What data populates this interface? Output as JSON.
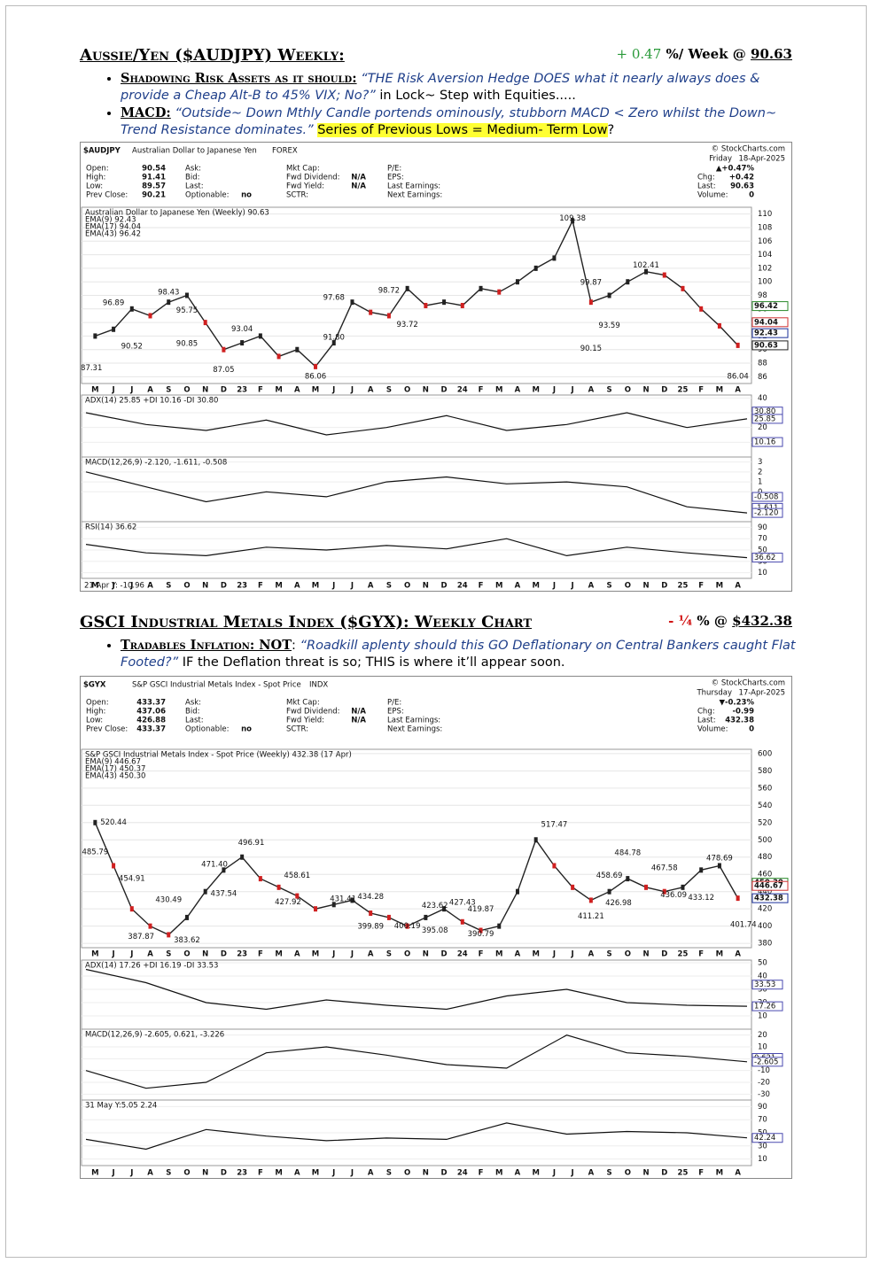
{
  "section1": {
    "title": "Aussie/Yen ($AUDJPY) Weekly:",
    "change": "+ 0.47",
    "change_suffix": "%/ Week @",
    "price": "90.63",
    "bullets": [
      {
        "lead": "Shadowing Risk Assets as it should:",
        "quote": "“THE Risk Aversion Hedge DOES what it nearly always does & provide a Cheap Alt-B to 45% VIX; No?”",
        "text": "in Lock~ Step with Equities....."
      },
      {
        "lead": "MACD:",
        "quote": "“Outside~ Down Mthly Candle portends ominously, stubborn MACD < Zero whilst the Down~ Trend Resistance dominates.”",
        "highlight": "Series of Previous Lows = Medium- Term Low",
        "text": "?"
      }
    ],
    "chart": {
      "type": "line",
      "symbol": "$AUDJPY",
      "name": "Australian Dollar to Japanese Yen",
      "exchange": "FOREX",
      "watermark": "© StockCharts.com",
      "day": "Friday",
      "date": "18-Apr-2025",
      "change": "▲+0.47%",
      "quote": [
        [
          [
            "Open:",
            "90.54"
          ],
          [
            "High:",
            "91.41"
          ],
          [
            "Low:",
            "89.57"
          ],
          [
            "Prev Close:",
            "90.21"
          ]
        ],
        [
          [
            "Ask:"
          ],
          [
            "Bid:"
          ],
          [
            "Last:"
          ],
          [
            "Optionable:",
            "no"
          ]
        ],
        [
          [
            "Mkt Cap:"
          ],
          [
            "Fwd Dividend:",
            "N/A"
          ],
          [
            "Fwd Yield:",
            "N/A"
          ],
          [
            "SCTR:"
          ]
        ],
        [
          [
            "P/E:"
          ],
          [
            "EPS:"
          ],
          [
            "Last Earnings:"
          ],
          [
            "Next Earnings:"
          ]
        ]
      ],
      "quote_right": [
        [
          "Chg:",
          "+0.42"
        ],
        [
          "Last:",
          "90.63"
        ],
        [
          "Volume:",
          "0"
        ]
      ],
      "legend": [
        "Australian Dollar to Japanese Yen (Weekly) 90.63",
        "EMA(9) 92.43",
        "EMA(17) 94.04",
        "EMA(43) 96.42"
      ],
      "categories": [
        "M",
        "J",
        "J",
        "A",
        "S",
        "O",
        "N",
        "D",
        "23",
        "F",
        "M",
        "A",
        "M",
        "J",
        "J",
        "A",
        "S",
        "O",
        "N",
        "D",
        "24",
        "F",
        "M",
        "A",
        "M",
        "J",
        "J",
        "A",
        "S",
        "O",
        "N",
        "D",
        "25",
        "F",
        "M",
        "A"
      ],
      "values": [
        92,
        93,
        96,
        95,
        97,
        98,
        94,
        90,
        91,
        92,
        89,
        90,
        87.5,
        91,
        97,
        95.5,
        95,
        99,
        96.5,
        97,
        96.5,
        99,
        98.5,
        100,
        102,
        103.5,
        109,
        97,
        98,
        100,
        101.5,
        101,
        99,
        96,
        93.5,
        90.63
      ],
      "color": "#222222",
      "ylim": [
        85,
        111
      ],
      "yticks": [
        86,
        88,
        90,
        92,
        94,
        96,
        98,
        100,
        102,
        104,
        106,
        108,
        110
      ],
      "annotations": [
        96.89,
        98.43,
        95.75,
        90.52,
        90.85,
        93.04,
        87.31,
        87.05,
        97.68,
        {
          "value": 91.8,
          "label": "91.80"
        },
        86.06,
        98.72,
        93.72,
        109.38,
        99.87,
        102.41,
        90.15,
        93.59,
        86.04
      ],
      "tags": [
        96.42,
        94.04,
        92.43,
        90.63
      ],
      "indicators": [
        {
          "label": "ADX(14) 25.85 +DI 10.16 -DI 30.80",
          "ylim": [
            0,
            42
          ],
          "yticks": [
            10,
            20,
            30,
            40
          ],
          "values": [
            30,
            22,
            18,
            25,
            15,
            20,
            28,
            18,
            22,
            30,
            20,
            25.85
          ],
          "tags": [
            {
              "value": 30.8,
              "label": "30.80"
            },
            25.85,
            10.16
          ]
        },
        {
          "label": "MACD(12,26,9) -2.120, -1.611, -0.508",
          "ylim": [
            -3,
            3.5
          ],
          "yticks": [
            0,
            1,
            2,
            3
          ],
          "values": [
            2,
            0.5,
            -1,
            0,
            -0.5,
            1,
            1.5,
            0.8,
            1,
            0.5,
            -1.5,
            -2.12
          ],
          "tags": [
            -0.508,
            -1.611,
            {
              "value": -2.12,
              "label": "-2.120"
            }
          ]
        },
        {
          "label": "RSI(14) 36.62",
          "ylim": [
            0,
            100
          ],
          "yticks": [
            10,
            30,
            50,
            70,
            90
          ],
          "values": [
            60,
            45,
            40,
            55,
            50,
            58,
            52,
            70,
            40,
            55,
            45,
            36.62
          ],
          "tags": [
            36.62
          ]
        }
      ],
      "footnote": "21 Apr Y: -10.96"
    }
  },
  "section2": {
    "title": "GSCI Industrial Metals Index ($GYX): Weekly Chart",
    "change": "- ¼",
    "change_suffix": "% @",
    "price": "$432.38",
    "bullets": [
      {
        "lead": "Tradables Inflation: NOT",
        "quote": "“Roadkill aplenty should this GO Deflationary on Central Bankers caught Flat Footed?”",
        "text": "IF the Deflation threat is so; THIS is where it’ll appear soon."
      }
    ],
    "chart": {
      "type": "line",
      "symbol": "$GYX",
      "name": "S&P GSCI Industrial Metals Index - Spot Price",
      "exchange": "INDX",
      "watermark": "© StockCharts.com",
      "day": "Thursday",
      "date": "17-Apr-2025",
      "change": "▼-0.23%",
      "quote": [
        [
          [
            "Open:",
            "433.37"
          ],
          [
            "High:",
            "437.06"
          ],
          [
            "Low:",
            "426.88"
          ],
          [
            "Prev Close:",
            "433.37"
          ]
        ],
        [
          [
            "Ask:"
          ],
          [
            "Bid:"
          ],
          [
            "Last:"
          ],
          [
            "Optionable:",
            "no"
          ]
        ],
        [
          [
            "Mkt Cap:"
          ],
          [
            "Fwd Dividend:",
            "N/A"
          ],
          [
            "Fwd Yield:",
            "N/A"
          ],
          [
            "SCTR:"
          ]
        ],
        [
          [
            "P/E:"
          ],
          [
            "EPS:"
          ],
          [
            "Last Earnings:"
          ],
          [
            "Next Earnings:"
          ]
        ]
      ],
      "quote_right": [
        [
          "Chg:",
          "-0.99"
        ],
        [
          "Last:",
          "432.38"
        ],
        [
          "Volume:",
          "0"
        ]
      ],
      "legend": [
        "S&P GSCI Industrial Metals Index - Spot Price (Weekly) 432.38 (17 Apr)",
        "EMA(9) 446.67",
        "EMA(17) 450.37",
        "EMA(43) 450.30"
      ],
      "categories": [
        "M",
        "J",
        "J",
        "A",
        "S",
        "O",
        "N",
        "D",
        "23",
        "F",
        "M",
        "A",
        "M",
        "J",
        "J",
        "A",
        "S",
        "O",
        "N",
        "D",
        "24",
        "F",
        "M",
        "A",
        "M",
        "J",
        "J",
        "A",
        "S",
        "O",
        "N",
        "D",
        "25",
        "F",
        "M",
        "A"
      ],
      "values": [
        520,
        470,
        420,
        400,
        390,
        410,
        440,
        465,
        480,
        455,
        445,
        435,
        420,
        425,
        430,
        415,
        410,
        400,
        410,
        420,
        405,
        395,
        400,
        440,
        500,
        470,
        445,
        430,
        440,
        455,
        445,
        440,
        445,
        465,
        470,
        432.38
      ],
      "color": "#222222",
      "ylim": [
        375,
        605
      ],
      "yticks": [
        380,
        400,
        420,
        440,
        460,
        480,
        500,
        520,
        540,
        560,
        580,
        600
      ],
      "annotations": [
        520.44,
        485.79,
        454.91,
        430.49,
        387.87,
        383.62,
        {
          "value": 471.4,
          "label": "471.40"
        },
        437.54,
        496.91,
        458.61,
        427.92,
        431.41,
        434.28,
        399.89,
        400.19,
        423.62,
        395.08,
        427.43,
        419.87,
        390.79,
        517.47,
        484.78,
        458.69,
        426.98,
        411.21,
        467.58,
        436.09,
        433.12,
        478.69,
        401.74
      ],
      "tags": [
        {
          "value": 450.3,
          "label": "450.30"
        },
        446.67,
        432.38
      ],
      "indicators": [
        {
          "label": "ADX(14) 17.26 +DI 16.19 -DI 33.53",
          "ylim": [
            0,
            52
          ],
          "yticks": [
            10,
            20,
            30,
            40,
            50
          ],
          "values": [
            45,
            35,
            20,
            15,
            22,
            18,
            15,
            25,
            30,
            20,
            18,
            17.26
          ],
          "tags": [
            33.53,
            17.26
          ]
        },
        {
          "label": "MACD(12,26,9) -2.605, 0.621, -3.226",
          "ylim": [
            -35,
            25
          ],
          "yticks": [
            -30,
            -20,
            -10,
            0,
            10,
            20
          ],
          "values": [
            -10,
            -25,
            -20,
            5,
            10,
            3,
            -5,
            -8,
            20,
            5,
            2,
            -2.605
          ],
          "tags": [
            0.621,
            -2.605
          ]
        },
        {
          "label": "31 May Y:5.05 2.24",
          "ylim": [
            0,
            100
          ],
          "yticks": [
            10,
            30,
            50,
            70,
            90
          ],
          "values": [
            40,
            25,
            55,
            45,
            38,
            42,
            40,
            65,
            48,
            52,
            50,
            42.24
          ],
          "tags": [
            42.24
          ]
        }
      ]
    }
  }
}
